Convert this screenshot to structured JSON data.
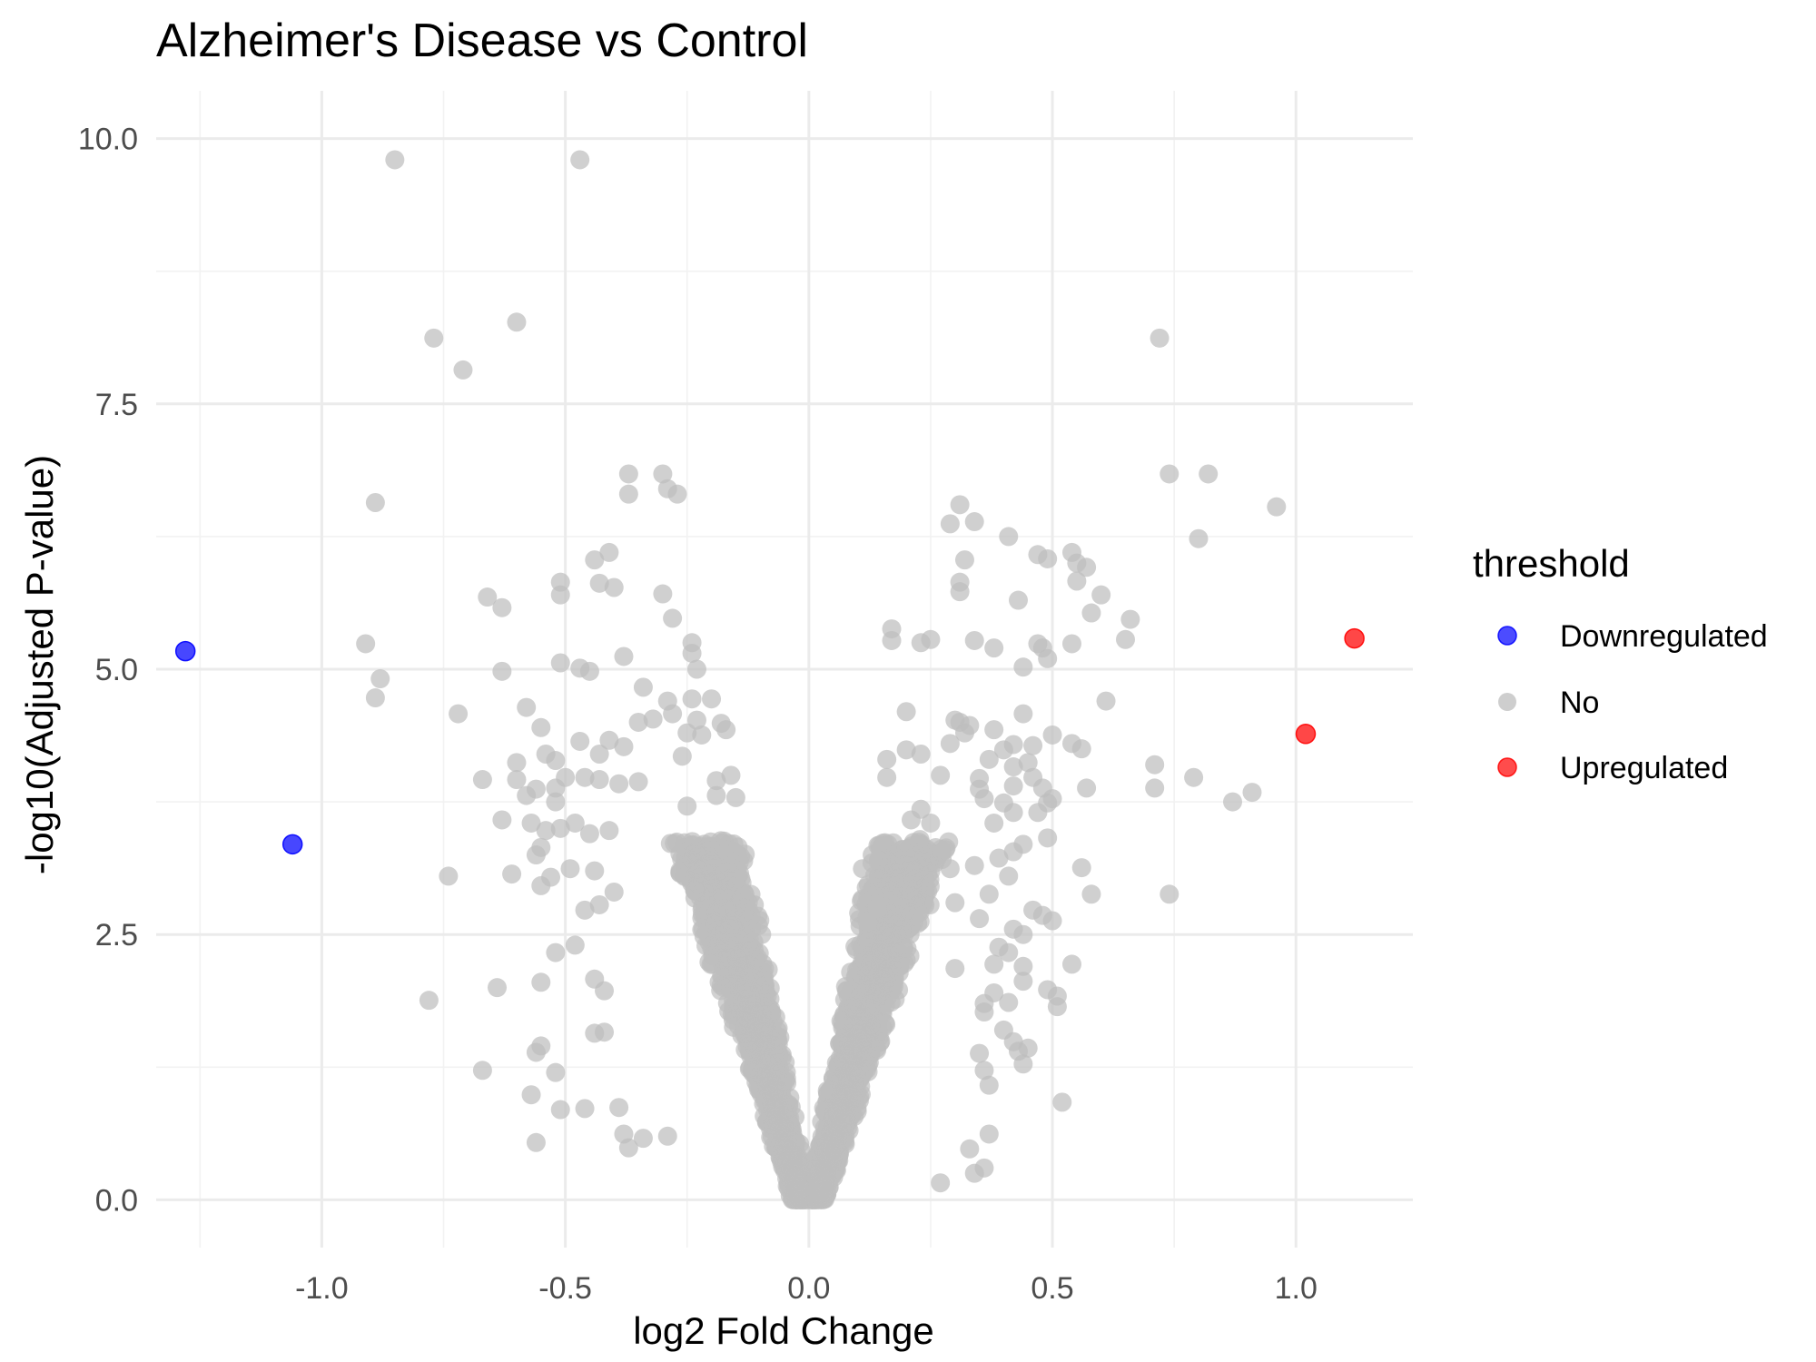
{
  "chart_data": {
    "type": "scatter",
    "title": "Alzheimer's Disease vs Control",
    "xlabel": "log2 Fold Change",
    "ylabel": "-log10(Adjusted P-value)",
    "xlim": [
      -1.34,
      1.24
    ],
    "ylim": [
      -0.45,
      10.45
    ],
    "x_ticks": [
      -1.0,
      -0.5,
      0.0,
      0.5,
      1.0
    ],
    "x_tick_labels": [
      "-1.0",
      "-0.5",
      "0.0",
      "0.5",
      "1.0"
    ],
    "y_ticks": [
      0.0,
      2.5,
      5.0,
      7.5,
      10.0
    ],
    "y_tick_labels": [
      "0.0",
      "2.5",
      "5.0",
      "7.5",
      "10.0"
    ],
    "grid": true,
    "legend": {
      "title": "threshold",
      "position": "right",
      "entries": [
        {
          "label": "Downregulated",
          "color": "#0000ff"
        },
        {
          "label": "No",
          "color": "#bebebe"
        },
        {
          "label": "Upregulated",
          "color": "#ff0000"
        }
      ]
    },
    "series": [
      {
        "name": "Downregulated",
        "color": "#0000ff",
        "points": [
          [
            -1.28,
            5.17
          ],
          [
            -1.06,
            3.35
          ]
        ]
      },
      {
        "name": "Upregulated",
        "color": "#ff0000",
        "points": [
          [
            1.12,
            5.29
          ],
          [
            1.02,
            4.39
          ]
        ]
      },
      {
        "name": "No",
        "color": "#bebebe",
        "points": [
          [
            -0.85,
            9.8
          ],
          [
            -0.47,
            9.8
          ],
          [
            -0.77,
            8.12
          ],
          [
            -0.6,
            8.27
          ],
          [
            -0.71,
            7.82
          ],
          [
            0.72,
            8.12
          ],
          [
            -0.89,
            6.57
          ],
          [
            -0.37,
            6.84
          ],
          [
            -0.3,
            6.84
          ],
          [
            -0.29,
            6.7
          ],
          [
            -0.27,
            6.65
          ],
          [
            -0.37,
            6.65
          ],
          [
            0.74,
            6.84
          ],
          [
            0.82,
            6.84
          ],
          [
            0.96,
            6.53
          ],
          [
            0.31,
            6.55
          ],
          [
            0.29,
            6.37
          ],
          [
            0.34,
            6.39
          ],
          [
            0.41,
            6.25
          ],
          [
            0.47,
            6.08
          ],
          [
            0.49,
            6.04
          ],
          [
            0.54,
            6.1
          ],
          [
            0.55,
            6.0
          ],
          [
            0.57,
            5.96
          ],
          [
            0.55,
            5.83
          ],
          [
            0.32,
            6.03
          ],
          [
            0.31,
            5.82
          ],
          [
            0.31,
            5.73
          ],
          [
            0.8,
            6.23
          ],
          [
            0.43,
            5.65
          ],
          [
            0.6,
            5.7
          ],
          [
            0.58,
            5.53
          ],
          [
            0.66,
            5.47
          ],
          [
            0.65,
            5.28
          ],
          [
            -0.41,
            6.1
          ],
          [
            -0.44,
            6.03
          ],
          [
            -0.43,
            5.81
          ],
          [
            -0.4,
            5.77
          ],
          [
            -0.51,
            5.82
          ],
          [
            -0.51,
            5.7
          ],
          [
            -0.66,
            5.68
          ],
          [
            -0.63,
            5.58
          ],
          [
            -0.3,
            5.71
          ],
          [
            -0.28,
            5.48
          ],
          [
            -0.24,
            5.25
          ],
          [
            -0.24,
            5.15
          ],
          [
            -0.23,
            5.0
          ],
          [
            -0.38,
            5.12
          ],
          [
            -0.51,
            5.06
          ],
          [
            -0.47,
            5.01
          ],
          [
            -0.45,
            4.98
          ],
          [
            -0.91,
            5.24
          ],
          [
            -0.88,
            4.91
          ],
          [
            -0.89,
            4.73
          ],
          [
            -0.72,
            4.58
          ],
          [
            -0.63,
            4.98
          ],
          [
            0.17,
            5.38
          ],
          [
            0.17,
            5.27
          ],
          [
            0.23,
            5.25
          ],
          [
            0.25,
            5.28
          ],
          [
            0.34,
            5.27
          ],
          [
            0.38,
            5.2
          ],
          [
            0.47,
            5.24
          ],
          [
            0.48,
            5.2
          ],
          [
            0.49,
            5.1
          ],
          [
            0.54,
            5.24
          ],
          [
            0.44,
            5.02
          ],
          [
            0.61,
            4.7
          ],
          [
            -0.58,
            4.64
          ],
          [
            -0.55,
            4.45
          ],
          [
            -0.34,
            4.83
          ],
          [
            -0.29,
            4.7
          ],
          [
            -0.24,
            4.72
          ],
          [
            -0.28,
            4.58
          ],
          [
            -0.23,
            4.52
          ],
          [
            -0.35,
            4.5
          ],
          [
            -0.32,
            4.53
          ],
          [
            -0.41,
            4.33
          ],
          [
            -0.47,
            4.32
          ],
          [
            -0.43,
            4.2
          ],
          [
            -0.38,
            4.27
          ],
          [
            -0.52,
            4.14
          ],
          [
            -0.54,
            4.2
          ],
          [
            -0.6,
            4.12
          ],
          [
            -0.6,
            3.96
          ],
          [
            -0.67,
            3.96
          ],
          [
            -0.56,
            3.87
          ],
          [
            -0.52,
            3.88
          ],
          [
            -0.5,
            3.98
          ],
          [
            -0.46,
            3.98
          ],
          [
            -0.43,
            3.96
          ],
          [
            -0.39,
            3.92
          ],
          [
            -0.35,
            3.94
          ],
          [
            -0.58,
            3.81
          ],
          [
            -0.52,
            3.75
          ],
          [
            -0.63,
            3.58
          ],
          [
            -0.57,
            3.55
          ],
          [
            -0.54,
            3.48
          ],
          [
            -0.51,
            3.5
          ],
          [
            -0.48,
            3.55
          ],
          [
            -0.45,
            3.45
          ],
          [
            -0.41,
            3.48
          ],
          [
            -0.55,
            3.32
          ],
          [
            -0.56,
            3.25
          ],
          [
            -0.61,
            3.07
          ],
          [
            -0.55,
            2.96
          ],
          [
            -0.53,
            3.04
          ],
          [
            -0.49,
            3.12
          ],
          [
            -0.74,
            3.05
          ],
          [
            -0.44,
            3.1
          ],
          [
            -0.46,
            2.73
          ],
          [
            -0.43,
            2.78
          ],
          [
            -0.4,
            2.9
          ],
          [
            -0.52,
            2.33
          ],
          [
            -0.48,
            2.4
          ],
          [
            -0.55,
            2.05
          ],
          [
            -0.64,
            2.0
          ],
          [
            -0.78,
            1.88
          ],
          [
            -0.44,
            2.08
          ],
          [
            -0.42,
            1.97
          ],
          [
            -0.44,
            1.57
          ],
          [
            -0.55,
            1.45
          ],
          [
            -0.42,
            1.58
          ],
          [
            -0.56,
            1.39
          ],
          [
            -0.52,
            1.2
          ],
          [
            -0.67,
            1.22
          ],
          [
            -0.57,
            0.99
          ],
          [
            -0.51,
            0.85
          ],
          [
            -0.46,
            0.86
          ],
          [
            -0.39,
            0.87
          ],
          [
            -0.56,
            0.54
          ],
          [
            -0.38,
            0.62
          ],
          [
            -0.37,
            0.49
          ],
          [
            -0.34,
            0.58
          ],
          [
            -0.29,
            0.6
          ],
          [
            -0.25,
            4.4
          ],
          [
            -0.26,
            4.18
          ],
          [
            -0.22,
            4.38
          ],
          [
            -0.17,
            4.43
          ],
          [
            -0.19,
            3.95
          ],
          [
            -0.16,
            4.0
          ],
          [
            -0.15,
            3.79
          ],
          [
            -0.19,
            3.81
          ],
          [
            -0.25,
            3.71
          ],
          [
            -0.2,
            4.72
          ],
          [
            -0.18,
            4.49
          ],
          [
            0.2,
            4.6
          ],
          [
            0.3,
            4.52
          ],
          [
            0.31,
            4.5
          ],
          [
            0.32,
            4.4
          ],
          [
            0.33,
            4.47
          ],
          [
            0.38,
            4.43
          ],
          [
            0.44,
            4.58
          ],
          [
            0.5,
            4.38
          ],
          [
            0.54,
            4.3
          ],
          [
            0.56,
            4.25
          ],
          [
            0.42,
            4.29
          ],
          [
            0.4,
            4.24
          ],
          [
            0.37,
            4.15
          ],
          [
            0.29,
            4.3
          ],
          [
            0.23,
            4.2
          ],
          [
            0.2,
            4.24
          ],
          [
            0.16,
            4.15
          ],
          [
            0.42,
            4.08
          ],
          [
            0.45,
            4.12
          ],
          [
            0.46,
            3.98
          ],
          [
            0.46,
            4.28
          ],
          [
            0.57,
            3.88
          ],
          [
            0.16,
            3.98
          ],
          [
            0.27,
            4.0
          ],
          [
            0.35,
            3.97
          ],
          [
            0.35,
            3.87
          ],
          [
            0.36,
            3.78
          ],
          [
            0.4,
            3.74
          ],
          [
            0.42,
            3.9
          ],
          [
            0.48,
            3.88
          ],
          [
            0.49,
            3.74
          ],
          [
            0.5,
            3.78
          ],
          [
            0.47,
            3.65
          ],
          [
            0.42,
            3.65
          ],
          [
            0.38,
            3.55
          ],
          [
            0.49,
            3.41
          ],
          [
            0.44,
            3.35
          ],
          [
            0.56,
            3.13
          ],
          [
            0.39,
            3.22
          ],
          [
            0.41,
            3.05
          ],
          [
            0.34,
            3.15
          ],
          [
            0.42,
            3.28
          ],
          [
            0.58,
            2.88
          ],
          [
            0.3,
            2.8
          ],
          [
            0.37,
            2.88
          ],
          [
            0.46,
            2.73
          ],
          [
            0.48,
            2.68
          ],
          [
            0.5,
            2.63
          ],
          [
            0.35,
            2.65
          ],
          [
            0.42,
            2.55
          ],
          [
            0.44,
            2.5
          ],
          [
            0.39,
            2.38
          ],
          [
            0.41,
            2.33
          ],
          [
            0.38,
            2.22
          ],
          [
            0.44,
            2.2
          ],
          [
            0.54,
            2.22
          ],
          [
            0.44,
            2.06
          ],
          [
            0.49,
            1.98
          ],
          [
            0.51,
            1.92
          ],
          [
            0.51,
            1.82
          ],
          [
            0.41,
            1.86
          ],
          [
            0.38,
            1.95
          ],
          [
            0.36,
            1.85
          ],
          [
            0.36,
            1.77
          ],
          [
            0.4,
            1.6
          ],
          [
            0.42,
            1.49
          ],
          [
            0.43,
            1.4
          ],
          [
            0.45,
            1.43
          ],
          [
            0.44,
            1.28
          ],
          [
            0.35,
            1.38
          ],
          [
            0.36,
            1.22
          ],
          [
            0.37,
            1.08
          ],
          [
            0.52,
            0.92
          ],
          [
            0.37,
            0.62
          ],
          [
            0.33,
            0.48
          ],
          [
            0.36,
            0.3
          ],
          [
            0.34,
            0.25
          ],
          [
            0.27,
            0.16
          ],
          [
            0.74,
            2.88
          ],
          [
            0.71,
            4.1
          ],
          [
            0.71,
            3.88
          ],
          [
            0.79,
            3.98
          ],
          [
            0.87,
            3.75
          ],
          [
            0.91,
            3.84
          ],
          [
            0.29,
            3.12
          ],
          [
            0.3,
            2.18
          ],
          [
            0.23,
            3.68
          ],
          [
            0.25,
            3.55
          ],
          [
            0.21,
            3.58
          ],
          [
            0.28,
            3.3
          ],
          [
            0.13,
            3.25
          ],
          [
            0.11,
            3.12
          ],
          [
            0.14,
            2.75
          ],
          [
            0.12,
            2.62
          ]
        ]
      }
    ]
  }
}
